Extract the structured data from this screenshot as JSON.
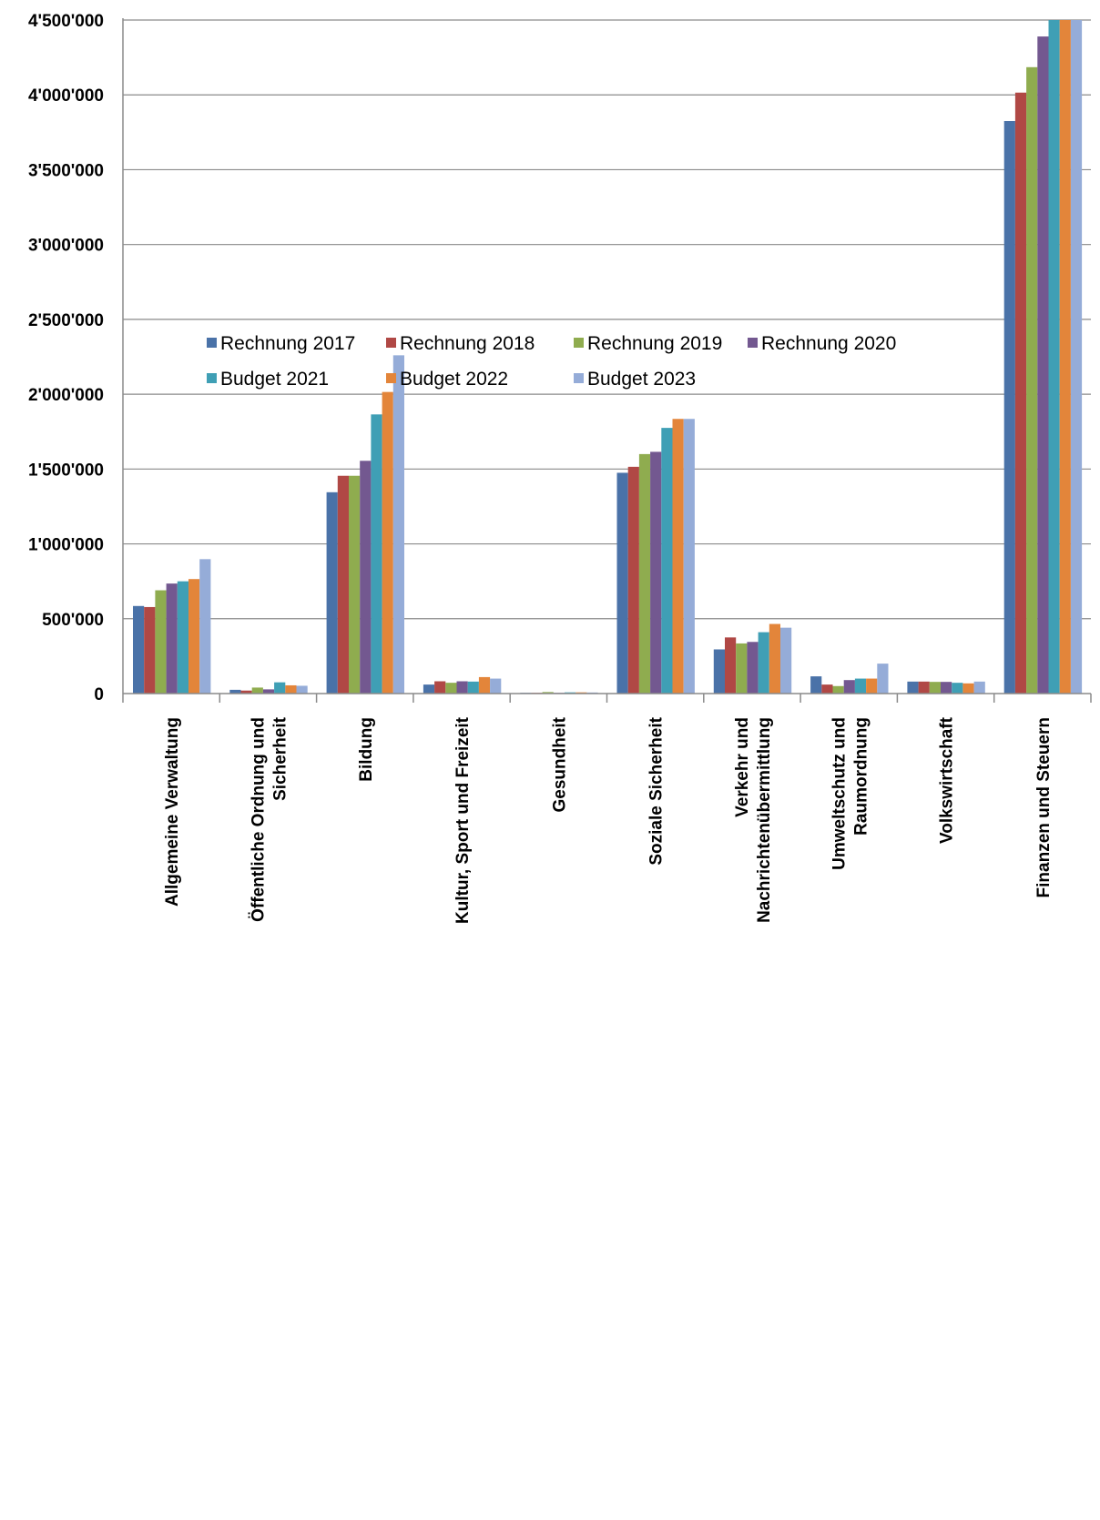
{
  "chart_data": {
    "type": "bar",
    "title": "",
    "xlabel": "",
    "ylabel": "",
    "ylim": [
      0,
      4500000
    ],
    "yticks": [
      {
        "value": 0,
        "label": "0"
      },
      {
        "value": 500000,
        "label": "500'000"
      },
      {
        "value": 1000000,
        "label": "1'000'000"
      },
      {
        "value": 1500000,
        "label": "1'500'000"
      },
      {
        "value": 2000000,
        "label": "2'000'000"
      },
      {
        "value": 2500000,
        "label": "2'500'000"
      },
      {
        "value": 3000000,
        "label": "3'000'000"
      },
      {
        "value": 3500000,
        "label": "3'500'000"
      },
      {
        "value": 4000000,
        "label": "4'000'000"
      },
      {
        "value": 4500000,
        "label": "4'500'000"
      }
    ],
    "grid": true,
    "legend_position": "top-center",
    "categories": [
      [
        "Allgemeine Verwaltung"
      ],
      [
        "Öffentliche Ordnung und",
        "Sicherheit"
      ],
      [
        "Bildung"
      ],
      [
        "Kultur, Sport und Freizeit"
      ],
      [
        "Gesundheit"
      ],
      [
        "Soziale Sicherheit"
      ],
      [
        "Verkehr und",
        "Nachrichtenübermittlung"
      ],
      [
        "Umweltschutz und",
        "Raumordnung"
      ],
      [
        "Volkswirtschaft"
      ],
      [
        "Finanzen und Steuern"
      ]
    ],
    "series": [
      {
        "name": "Rechnung 2017",
        "color": "#4a72a8",
        "values": [
          585000,
          25000,
          1345000,
          60000,
          5000,
          1475000,
          295000,
          115000,
          80000,
          3825000
        ]
      },
      {
        "name": "Rechnung 2018",
        "color": "#b04845",
        "values": [
          578000,
          20000,
          1455000,
          82000,
          5000,
          1515000,
          375000,
          60000,
          80000,
          4015000
        ]
      },
      {
        "name": "Rechnung 2019",
        "color": "#8fac4f",
        "values": [
          690000,
          40000,
          1455000,
          72000,
          10000,
          1600000,
          335000,
          50000,
          78000,
          4185000
        ]
      },
      {
        "name": "Rechnung 2020",
        "color": "#735890",
        "values": [
          735000,
          28000,
          1555000,
          82000,
          5000,
          1615000,
          345000,
          90000,
          78000,
          4390000
        ]
      },
      {
        "name": "Budget 2021",
        "color": "#3f9fb5",
        "values": [
          750000,
          75000,
          1865000,
          80000,
          8000,
          1775000,
          410000,
          100000,
          72000,
          4560000
        ]
      },
      {
        "name": "Budget 2022",
        "color": "#e3853a",
        "values": [
          765000,
          55000,
          2015000,
          110000,
          8000,
          1835000,
          465000,
          100000,
          68000,
          4620000
        ]
      },
      {
        "name": "Budget 2023",
        "color": "#95acd8",
        "values": [
          898000,
          52000,
          2260000,
          100000,
          7000,
          1835000,
          440000,
          200000,
          80000,
          4700000
        ]
      }
    ]
  }
}
